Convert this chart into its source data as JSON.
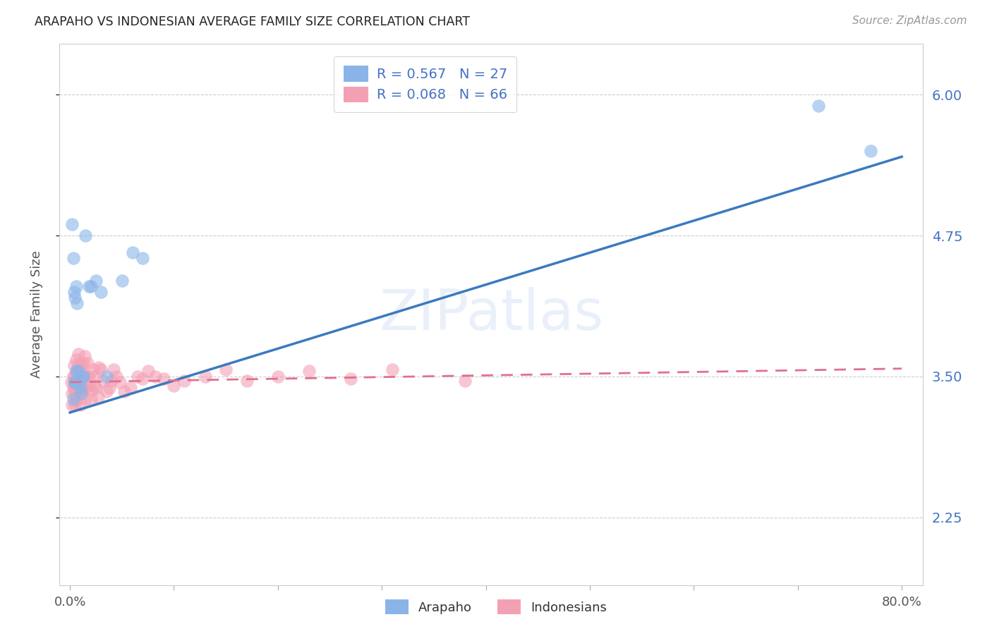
{
  "title": "ARAPAHO VS INDONESIAN AVERAGE FAMILY SIZE CORRELATION CHART",
  "source": "Source: ZipAtlas.com",
  "ylabel": "Average Family Size",
  "yticks": [
    2.25,
    3.5,
    4.75,
    6.0
  ],
  "xmin": -0.01,
  "xmax": 0.82,
  "ymin": 1.65,
  "ymax": 6.45,
  "arapaho_R": 0.567,
  "arapaho_N": 27,
  "indonesian_R": 0.068,
  "indonesian_N": 66,
  "arapaho_color": "#8ab4e8",
  "indonesian_color": "#f4a0b4",
  "arapaho_line_color": "#3a7abf",
  "indonesian_line_color": "#e07090",
  "background_color": "#ffffff",
  "grid_color": "#cccccc",
  "title_color": "#222222",
  "right_tick_color": "#4472c4",
  "watermark": "ZIPatlas",
  "arapaho_line_x0": 0.0,
  "arapaho_line_y0": 3.18,
  "arapaho_line_x1": 0.8,
  "arapaho_line_y1": 5.45,
  "indonesian_line_x0": 0.0,
  "indonesian_line_y0": 3.45,
  "indonesian_line_x1": 0.8,
  "indonesian_line_y1": 3.57,
  "arapaho_x": [
    0.002,
    0.003,
    0.003,
    0.004,
    0.004,
    0.005,
    0.005,
    0.006,
    0.006,
    0.007,
    0.008,
    0.009,
    0.01,
    0.011,
    0.012,
    0.013,
    0.015,
    0.018,
    0.02,
    0.025,
    0.03,
    0.035,
    0.05,
    0.06,
    0.07,
    0.72,
    0.77
  ],
  "arapaho_y": [
    4.85,
    4.55,
    3.3,
    4.25,
    3.45,
    4.2,
    3.45,
    3.55,
    4.3,
    4.15,
    3.55,
    3.45,
    3.4,
    3.35,
    3.5,
    3.5,
    4.75,
    4.3,
    4.3,
    4.35,
    4.25,
    3.5,
    4.35,
    4.6,
    4.55,
    5.9,
    5.5
  ],
  "indonesian_x": [
    0.001,
    0.002,
    0.002,
    0.003,
    0.003,
    0.004,
    0.004,
    0.005,
    0.005,
    0.005,
    0.006,
    0.006,
    0.007,
    0.007,
    0.008,
    0.008,
    0.009,
    0.009,
    0.01,
    0.01,
    0.011,
    0.011,
    0.012,
    0.012,
    0.013,
    0.013,
    0.014,
    0.015,
    0.015,
    0.016,
    0.017,
    0.018,
    0.018,
    0.02,
    0.02,
    0.022,
    0.023,
    0.024,
    0.025,
    0.027,
    0.028,
    0.03,
    0.032,
    0.035,
    0.038,
    0.04,
    0.042,
    0.045,
    0.048,
    0.052,
    0.058,
    0.065,
    0.07,
    0.075,
    0.082,
    0.09,
    0.1,
    0.11,
    0.13,
    0.15,
    0.17,
    0.2,
    0.23,
    0.27,
    0.31,
    0.38
  ],
  "indonesian_y": [
    3.45,
    3.35,
    3.25,
    3.5,
    3.4,
    3.6,
    3.5,
    3.4,
    3.35,
    3.25,
    3.55,
    3.65,
    3.4,
    3.3,
    3.7,
    3.6,
    3.55,
    3.4,
    3.35,
    3.25,
    3.6,
    3.5,
    3.4,
    3.38,
    3.52,
    3.62,
    3.68,
    3.4,
    3.3,
    3.5,
    3.62,
    3.5,
    3.42,
    3.38,
    3.3,
    3.56,
    3.5,
    3.42,
    3.4,
    3.32,
    3.58,
    3.56,
    3.46,
    3.37,
    3.4,
    3.46,
    3.56,
    3.5,
    3.45,
    3.37,
    3.4,
    3.5,
    3.48,
    3.55,
    3.5,
    3.48,
    3.42,
    3.46,
    3.5,
    3.56,
    3.46,
    3.5,
    3.55,
    3.48,
    3.56,
    3.46
  ]
}
